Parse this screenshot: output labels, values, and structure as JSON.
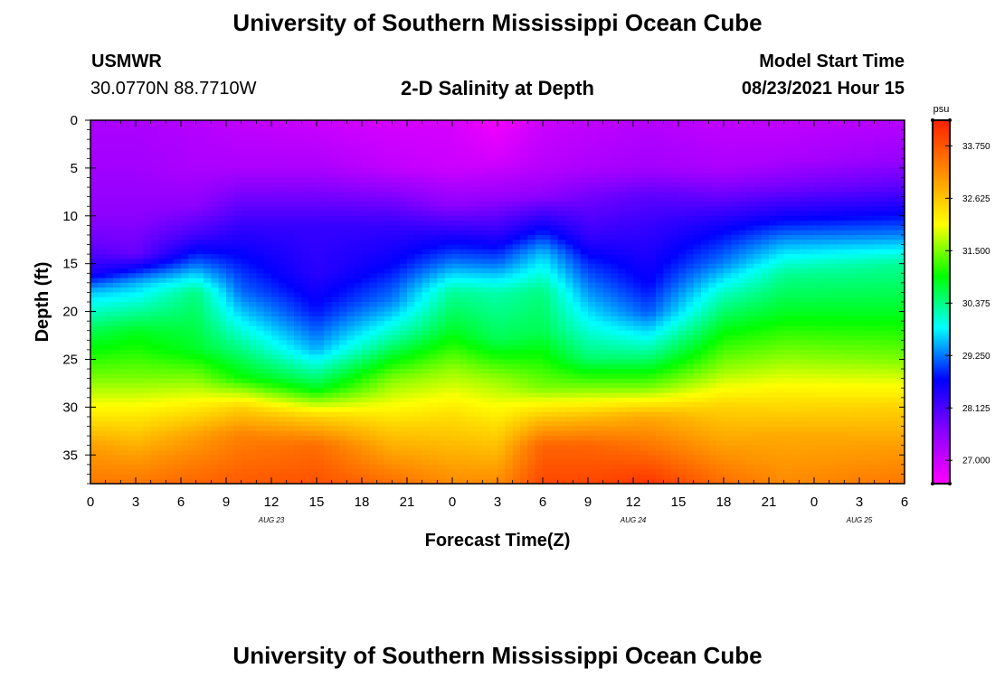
{
  "page": {
    "title_top": "University of Southern Mississippi Ocean Cube",
    "title_bottom": "University of Southern Mississippi Ocean Cube",
    "station": {
      "name": "USMWR",
      "coords": "30.0770N  88.7710W"
    },
    "plot_title": "2-D Salinity at Depth",
    "model_start": {
      "label": "Model Start Time",
      "value": "08/23/2021 Hour 15"
    }
  },
  "chart_data": {
    "type": "heatmap",
    "title": "2-D Salinity at Depth",
    "xlabel": "Forecast Time(Z)",
    "ylabel": "Depth (ft)",
    "x_range": [
      0,
      54
    ],
    "y_range": [
      0,
      38
    ],
    "x_ticks": [
      {
        "pos": 0,
        "label": "0"
      },
      {
        "pos": 3,
        "label": "3"
      },
      {
        "pos": 6,
        "label": "6"
      },
      {
        "pos": 9,
        "label": "9"
      },
      {
        "pos": 12,
        "label": "12"
      },
      {
        "pos": 15,
        "label": "15"
      },
      {
        "pos": 18,
        "label": "18"
      },
      {
        "pos": 21,
        "label": "21"
      },
      {
        "pos": 24,
        "label": "0"
      },
      {
        "pos": 27,
        "label": "3"
      },
      {
        "pos": 30,
        "label": "6"
      },
      {
        "pos": 33,
        "label": "9"
      },
      {
        "pos": 36,
        "label": "12"
      },
      {
        "pos": 39,
        "label": "15"
      },
      {
        "pos": 42,
        "label": "18"
      },
      {
        "pos": 45,
        "label": "21"
      },
      {
        "pos": 48,
        "label": "0"
      },
      {
        "pos": 51,
        "label": "3"
      },
      {
        "pos": 54,
        "label": "6"
      }
    ],
    "date_labels": [
      {
        "pos": 12,
        "label": "AUG 23"
      },
      {
        "pos": 36,
        "label": "AUG 24"
      },
      {
        "pos": 51,
        "label": "AUG 25"
      }
    ],
    "y_ticks": [
      0,
      5,
      10,
      15,
      20,
      25,
      30,
      35
    ],
    "colorbar": {
      "unit": "psu",
      "min": 26.5,
      "max": 34.3,
      "ticks": [
        {
          "value": 27.0,
          "label": "27.000"
        },
        {
          "value": 28.125,
          "label": "28.125"
        },
        {
          "value": 29.25,
          "label": "29.250"
        },
        {
          "value": 30.375,
          "label": "30.375"
        },
        {
          "value": 31.5,
          "label": "31.500"
        },
        {
          "value": 32.625,
          "label": "32.625"
        },
        {
          "value": 33.75,
          "label": "33.750"
        }
      ],
      "stops": [
        "#ff00ff",
        "#8b00ff",
        "#0000ff",
        "#00ffff",
        "#00ff00",
        "#ffff00",
        "#ff8c00",
        "#ff2000"
      ]
    },
    "salinity_profiles": [
      {
        "time": 0,
        "depth": [
          0,
          5,
          10,
          13,
          16,
          18,
          22,
          27,
          31,
          34,
          38
        ],
        "salinity": [
          27.3,
          27.4,
          27.6,
          27.9,
          28.5,
          29.6,
          30.6,
          31.5,
          32.3,
          33.0,
          33.4
        ]
      },
      {
        "time": 3,
        "depth": [
          0,
          5,
          10,
          14,
          17,
          22,
          27,
          31,
          35,
          38
        ],
        "salinity": [
          27.3,
          27.4,
          27.6,
          27.9,
          29.5,
          30.8,
          31.5,
          32.3,
          33.0,
          33.4
        ]
      },
      {
        "time": 7,
        "depth": [
          0,
          5,
          9,
          12,
          15,
          18,
          24,
          29,
          33,
          38
        ],
        "salinity": [
          27.2,
          27.3,
          27.6,
          28.2,
          29.2,
          30.4,
          30.8,
          32.0,
          33.0,
          33.6
        ]
      },
      {
        "time": 10,
        "depth": [
          0,
          5,
          8,
          11,
          14,
          18,
          22,
          27,
          30,
          33,
          38
        ],
        "salinity": [
          27.1,
          27.3,
          27.8,
          28.3,
          28.7,
          29.2,
          30.0,
          31.0,
          32.5,
          33.3,
          33.7
        ]
      },
      {
        "time": 15,
        "depth": [
          0,
          5,
          8,
          11,
          16,
          20,
          24,
          28,
          31,
          34,
          38
        ],
        "salinity": [
          27.0,
          27.3,
          27.8,
          28.3,
          28.4,
          28.8,
          29.5,
          30.8,
          32.5,
          33.5,
          33.8
        ]
      },
      {
        "time": 20,
        "depth": [
          0,
          5,
          8,
          11,
          15,
          19,
          23,
          27,
          32,
          38
        ],
        "salinity": [
          26.9,
          27.1,
          27.7,
          28.3,
          28.7,
          29.3,
          30.3,
          31.5,
          32.5,
          33.5
        ]
      },
      {
        "time": 24,
        "depth": [
          0,
          5,
          9,
          12,
          15,
          18,
          22,
          26,
          31,
          38
        ],
        "salinity": [
          26.9,
          27.0,
          27.6,
          28.5,
          29.3,
          30.3,
          30.8,
          31.6,
          32.4,
          33.2
        ]
      },
      {
        "time": 27,
        "depth": [
          0,
          4,
          8,
          12,
          15,
          18,
          23,
          27,
          32,
          38
        ],
        "salinity": [
          26.6,
          26.9,
          27.5,
          28.4,
          29.2,
          30.2,
          30.6,
          31.6,
          32.4,
          33.2
        ]
      },
      {
        "time": 30,
        "depth": [
          0,
          5,
          8,
          11,
          14,
          18,
          22,
          28,
          31,
          34,
          38
        ],
        "salinity": [
          27.0,
          27.2,
          27.6,
          28.6,
          29.6,
          30.4,
          30.6,
          31.5,
          32.6,
          33.6,
          33.9
        ]
      },
      {
        "time": 33,
        "depth": [
          0,
          5,
          8,
          12,
          15,
          20,
          25,
          28,
          31,
          34,
          38
        ],
        "salinity": [
          27.1,
          27.3,
          27.8,
          28.3,
          28.9,
          29.7,
          30.5,
          31.5,
          32.7,
          33.6,
          33.9
        ]
      },
      {
        "time": 37,
        "depth": [
          0,
          5,
          8,
          11,
          14,
          17,
          20,
          25,
          28,
          31,
          38
        ],
        "salinity": [
          27.2,
          27.4,
          28.0,
          28.3,
          28.5,
          28.7,
          29.1,
          30.5,
          31.5,
          32.9,
          34.1
        ]
      },
      {
        "time": 42,
        "depth": [
          0,
          5,
          8,
          11,
          15,
          18,
          22,
          26,
          30,
          38
        ],
        "salinity": [
          27.1,
          27.3,
          27.9,
          28.6,
          29.3,
          30.1,
          30.9,
          31.6,
          32.5,
          33.5
        ]
      },
      {
        "time": 46,
        "depth": [
          0,
          4,
          7,
          10,
          13,
          16,
          20,
          25,
          29,
          33,
          38
        ],
        "salinity": [
          27.1,
          27.3,
          27.8,
          28.6,
          29.5,
          30.3,
          30.8,
          31.6,
          32.3,
          32.9,
          33.2
        ]
      },
      {
        "time": 54,
        "depth": [
          0,
          4,
          7,
          9,
          12,
          15,
          20,
          25,
          30,
          34,
          38
        ],
        "salinity": [
          27.2,
          27.5,
          28.0,
          28.5,
          29.3,
          30.3,
          30.8,
          31.5,
          32.5,
          33.0,
          33.4
        ]
      }
    ]
  }
}
